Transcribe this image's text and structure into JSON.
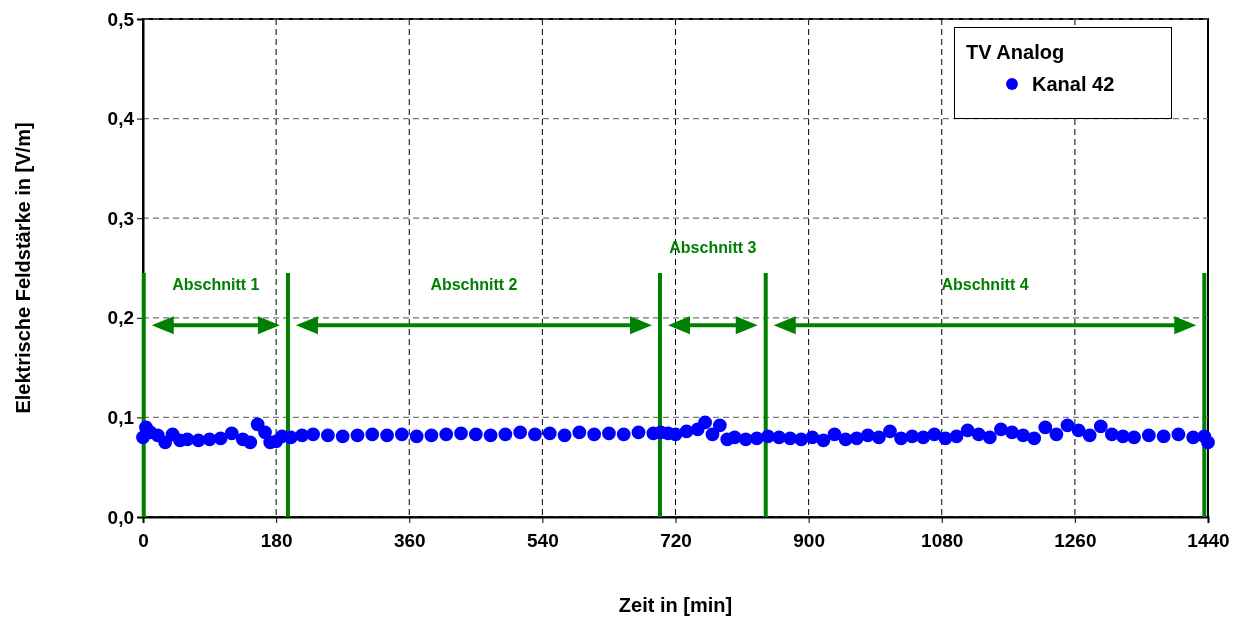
{
  "chart_data": {
    "type": "scatter",
    "xlabel": "Zeit in [min]",
    "ylabel": "Elektrische Feldstärke in [V/m]",
    "legend_title": "TV Analog",
    "legend": "top right",
    "grid": true,
    "marker": "circle",
    "xlim": [
      0,
      1440
    ],
    "xticks": [
      0,
      180,
      360,
      540,
      720,
      900,
      1080,
      1260,
      1440
    ],
    "ylim": [
      0,
      0.5
    ],
    "yticks": [
      {
        "value": 0,
        "label": "0,0"
      },
      {
        "value": 0.1,
        "label": "0,1"
      },
      {
        "value": 0.2,
        "label": "0,2"
      },
      {
        "value": 0.3,
        "label": "0,3"
      },
      {
        "value": 0.4,
        "label": "0,4"
      },
      {
        "value": 0.5,
        "label": "0,5"
      }
    ],
    "series": [
      {
        "name": "Kanal 42",
        "color": "#0000ff",
        "x": [
          0,
          4,
          10,
          20,
          30,
          40,
          50,
          60,
          75,
          90,
          105,
          120,
          135,
          145,
          155,
          165,
          172,
          180,
          188,
          200,
          215,
          230,
          250,
          270,
          290,
          310,
          330,
          350,
          370,
          390,
          410,
          430,
          450,
          470,
          490,
          510,
          530,
          550,
          570,
          590,
          610,
          630,
          650,
          670,
          690,
          700,
          710,
          720,
          735,
          750,
          760,
          770,
          780,
          790,
          800,
          815,
          830,
          845,
          860,
          875,
          890,
          905,
          920,
          935,
          950,
          965,
          980,
          995,
          1010,
          1025,
          1040,
          1055,
          1070,
          1085,
          1100,
          1115,
          1130,
          1145,
          1160,
          1175,
          1190,
          1205,
          1220,
          1235,
          1250,
          1265,
          1280,
          1295,
          1310,
          1325,
          1340,
          1360,
          1380,
          1400,
          1420,
          1435,
          1440
        ],
        "values": [
          0.08,
          0.09,
          0.085,
          0.082,
          0.075,
          0.083,
          0.077,
          0.078,
          0.077,
          0.078,
          0.079,
          0.084,
          0.078,
          0.075,
          0.093,
          0.085,
          0.075,
          0.076,
          0.081,
          0.08,
          0.082,
          0.083,
          0.082,
          0.081,
          0.082,
          0.083,
          0.082,
          0.083,
          0.081,
          0.082,
          0.083,
          0.084,
          0.083,
          0.082,
          0.083,
          0.085,
          0.083,
          0.084,
          0.082,
          0.085,
          0.083,
          0.084,
          0.083,
          0.085,
          0.084,
          0.085,
          0.084,
          0.083,
          0.086,
          0.088,
          0.095,
          0.083,
          0.092,
          0.078,
          0.08,
          0.078,
          0.079,
          0.081,
          0.08,
          0.079,
          0.078,
          0.08,
          0.077,
          0.083,
          0.078,
          0.079,
          0.082,
          0.08,
          0.086,
          0.079,
          0.081,
          0.08,
          0.083,
          0.079,
          0.081,
          0.087,
          0.083,
          0.08,
          0.088,
          0.085,
          0.082,
          0.079,
          0.09,
          0.083,
          0.092,
          0.087,
          0.082,
          0.091,
          0.083,
          0.081,
          0.08,
          0.082,
          0.081,
          0.083,
          0.08,
          0.081,
          0.075
        ]
      }
    ],
    "ref_lines": [
      {
        "axis": "x",
        "value": 1,
        "color": "#008000"
      },
      {
        "axis": "x",
        "value": 196,
        "color": "#008000"
      },
      {
        "axis": "x",
        "value": 699,
        "color": "#008000"
      },
      {
        "axis": "x",
        "value": 842,
        "color": "#008000"
      },
      {
        "axis": "x",
        "value": 1435,
        "color": "#008000"
      }
    ],
    "annotations": [
      "Abschnitt 1",
      "Abschnitt 2",
      "Abschnitt 3",
      "Abschnitt 4"
    ]
  }
}
